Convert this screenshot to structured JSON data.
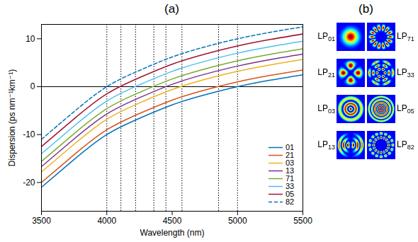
{
  "chart_data": {
    "type": "line",
    "title": "(a)",
    "xlabel": "Wavelength (nm)",
    "ylabel": "Dispersion (ps nm⁻¹km⁻¹)",
    "x": [
      3500,
      3750,
      4000,
      4250,
      4500,
      4750,
      5000,
      5250,
      5500
    ],
    "xlim": [
      3500,
      5500
    ],
    "xticks": [
      3500,
      4000,
      4500,
      5000,
      5500
    ],
    "ylim": [
      -26,
      13
    ],
    "yticks": [
      -20,
      -10,
      0,
      10
    ],
    "legend": "bottom-right",
    "reference_lines": {
      "x": [
        4000,
        4108,
        4220,
        4360,
        4452,
        4575,
        4855,
        5000
      ],
      "y": [
        0
      ]
    },
    "series": [
      {
        "name": "01",
        "color": "#0072BD",
        "line_style": "solid",
        "values": [
          -21,
          -15.2,
          -10,
          -6.6,
          -3.8,
          -1.7,
          0,
          1.35,
          2.5
        ]
      },
      {
        "name": "21",
        "color": "#D95319",
        "line_style": "solid",
        "values": [
          -20,
          -14.2,
          -9,
          -5.6,
          -2.8,
          -0.7,
          1,
          2.35,
          3.5
        ]
      },
      {
        "name": "03",
        "color": "#EDB120",
        "line_style": "solid",
        "values": [
          -17.8,
          -12,
          -6.8,
          -3.4,
          -0.6,
          1.5,
          3.2,
          4.55,
          5.7
        ]
      },
      {
        "name": "13",
        "color": "#7E2F8E",
        "line_style": "solid",
        "values": [
          -16.7,
          -10.9,
          -5.7,
          -2.3,
          0.5,
          2.6,
          4.3,
          5.65,
          6.8
        ]
      },
      {
        "name": "71",
        "color": "#77AC30",
        "line_style": "solid",
        "values": [
          -15.6,
          -9.8,
          -4.6,
          -1.2,
          1.6,
          3.7,
          5.4,
          6.75,
          7.9
        ]
      },
      {
        "name": "33",
        "color": "#4DBEEE",
        "line_style": "solid",
        "values": [
          -14,
          -8.2,
          -3,
          0.4,
          3.2,
          5.3,
          7,
          8.35,
          9.5
        ]
      },
      {
        "name": "05",
        "color": "#A2142F",
        "line_style": "solid",
        "values": [
          -12.5,
          -6.7,
          -1.5,
          1.9,
          4.7,
          6.8,
          8.5,
          9.85,
          11
        ]
      },
      {
        "name": "82",
        "color": "#0072BD",
        "line_style": "dashed",
        "values": [
          -11,
          -5.2,
          0,
          3.4,
          6.2,
          8.3,
          10,
          11.35,
          12.5
        ]
      }
    ]
  },
  "panel_b": {
    "title": "(b)",
    "rows": [
      [
        {
          "label": "LP",
          "index": "01"
        },
        {
          "label": "LP",
          "index": "71"
        }
      ],
      [
        {
          "label": "LP",
          "index": "21"
        },
        {
          "label": "LP",
          "index": "33"
        }
      ],
      [
        {
          "label": "LP",
          "index": "03"
        },
        {
          "label": "LP",
          "index": "05"
        }
      ],
      [
        {
          "label": "LP",
          "index": "13"
        },
        {
          "label": "LP",
          "index": "82"
        }
      ]
    ]
  }
}
